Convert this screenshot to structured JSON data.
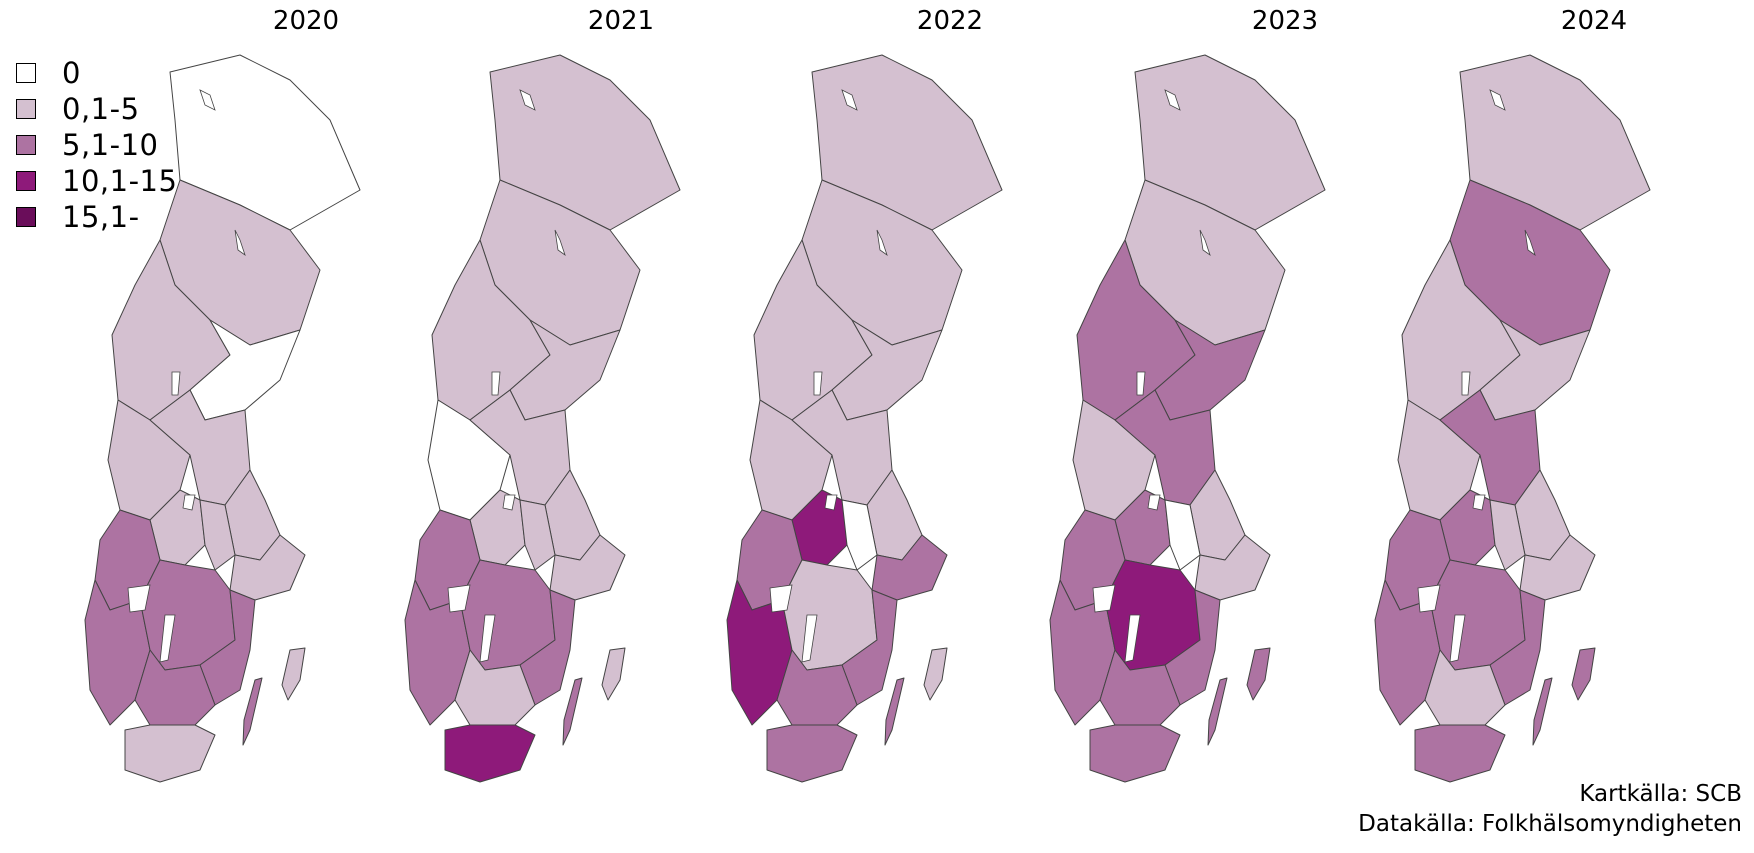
{
  "legend": [
    {
      "label": "0",
      "color": "#ffffff"
    },
    {
      "label": "0,1-5",
      "color": "#d4c0d0"
    },
    {
      "label": "5,1-10",
      "color": "#ad73a2"
    },
    {
      "label": "10,1-15",
      "color": "#8e1a7a"
    },
    {
      "label": "15,1-",
      "color": "#6a0d5a"
    }
  ],
  "years": [
    "2020",
    "2021",
    "2022",
    "2023",
    "2024"
  ],
  "regions": [
    "north",
    "north2",
    "center_w",
    "center_e",
    "mid_w",
    "mid_e",
    "east_coast",
    "mid_s_w",
    "mid_s_e",
    "stockholm",
    "west_lake",
    "west_coast",
    "south_center",
    "south_e",
    "south_w",
    "skane",
    "gotland",
    "oland"
  ],
  "classes": {
    "2020": {
      "north": 0,
      "north2": 1,
      "center_w": 1,
      "center_e": 0,
      "mid_w": 1,
      "mid_e": 1,
      "east_coast": 1,
      "mid_s_w": 1,
      "mid_s_e": 1,
      "stockholm": 1,
      "west_lake": 2,
      "west_coast": 2,
      "south_center": 2,
      "south_e": 2,
      "south_w": 2,
      "skane": 1,
      "gotland": 1,
      "oland": 2
    },
    "2021": {
      "north": 1,
      "north2": 1,
      "center_w": 1,
      "center_e": 1,
      "mid_w": 0,
      "mid_e": 1,
      "east_coast": 1,
      "mid_s_w": 1,
      "mid_s_e": 1,
      "stockholm": 1,
      "west_lake": 2,
      "west_coast": 2,
      "south_center": 2,
      "south_e": 2,
      "south_w": 1,
      "skane": 3,
      "gotland": 1,
      "oland": 2
    },
    "2022": {
      "north": 1,
      "north2": 1,
      "center_w": 1,
      "center_e": 1,
      "mid_w": 1,
      "mid_e": 1,
      "east_coast": 1,
      "mid_s_w": 3,
      "mid_s_e": 0,
      "stockholm": 2,
      "west_lake": 2,
      "west_coast": 3,
      "south_center": 1,
      "south_e": 2,
      "south_w": 2,
      "skane": 2,
      "gotland": 1,
      "oland": 2
    },
    "2023": {
      "north": 1,
      "north2": 1,
      "center_w": 2,
      "center_e": 2,
      "mid_w": 1,
      "mid_e": 2,
      "east_coast": 1,
      "mid_s_w": 2,
      "mid_s_e": 0,
      "stockholm": 1,
      "west_lake": 2,
      "west_coast": 2,
      "south_center": 3,
      "south_e": 2,
      "south_w": 2,
      "skane": 2,
      "gotland": 2,
      "oland": 2
    },
    "2024": {
      "north": 1,
      "north2": 2,
      "center_w": 1,
      "center_e": 1,
      "mid_w": 1,
      "mid_e": 2,
      "east_coast": 1,
      "mid_s_w": 2,
      "mid_s_e": 1,
      "stockholm": 1,
      "west_lake": 2,
      "west_coast": 2,
      "south_center": 2,
      "south_e": 2,
      "south_w": 1,
      "skane": 2,
      "gotland": 2,
      "oland": 2
    }
  },
  "credits": {
    "map_source": "Kartkälla: SCB",
    "data_source": "Datakälla: Folkhälsomyndigheten"
  }
}
